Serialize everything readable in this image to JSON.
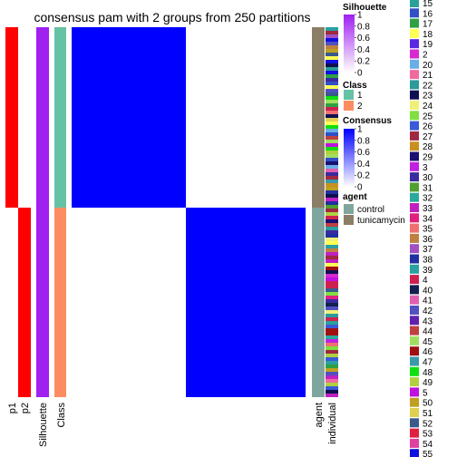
{
  "chart_data": {
    "type": "heatmap",
    "title": "consensus pam with 2 groups from 250 partitions",
    "group1_fraction": 0.488,
    "columns": {
      "p1": {
        "label": "p1",
        "top_color": "#FF0000",
        "bottom_color": "#FFFFFF"
      },
      "p2": {
        "label": "p2",
        "top_color": "#FFFFFF",
        "bottom_color": "#FF0000"
      },
      "silhouette": {
        "label": "Silhouette",
        "color": "#A020F0"
      },
      "class": {
        "label": "Class",
        "top_color": "#66C2A5",
        "bottom_color": "#FC8D62"
      },
      "agent": {
        "label": "agent",
        "top_color": "#8B7E66",
        "bottom_color": "#7FA69E"
      },
      "individual": {
        "label": "individual"
      }
    },
    "consensus_matrix": {
      "groups": [
        "1",
        "2"
      ],
      "values": [
        [
          1,
          0
        ],
        [
          0,
          1
        ]
      ],
      "high_color": "#0000FF",
      "low_color": "#FFFFFF"
    },
    "legends": {
      "silhouette": {
        "title": "Silhouette",
        "ticks": [
          "1",
          "0.8",
          "0.6",
          "0.4",
          "0.2",
          "0"
        ],
        "low_color": "#FFFFFF",
        "high_color": "#A020F0"
      },
      "class": {
        "title": "Class",
        "items": [
          {
            "label": "1",
            "color": "#66C2A5"
          },
          {
            "label": "2",
            "color": "#FC8D62"
          }
        ]
      },
      "consensus": {
        "title": "Consensus",
        "ticks": [
          "1",
          "0.8",
          "0.6",
          "0.4",
          "0.2",
          "0"
        ],
        "low_color": "#FFFFFF",
        "high_color": "#0000FF"
      },
      "agent": {
        "title": "agent",
        "items": [
          {
            "label": "control",
            "color": "#7FA69E"
          },
          {
            "label": "tunicamycin",
            "color": "#8B7E66"
          }
        ]
      },
      "individual": {
        "items": [
          {
            "label": "15",
            "color": "#2AA198"
          },
          {
            "label": "16",
            "color": "#3050C8"
          },
          {
            "label": "17",
            "color": "#2EA043"
          },
          {
            "label": "18",
            "color": "#FFFF55"
          },
          {
            "label": "19",
            "color": "#5A28E0"
          },
          {
            "label": "2",
            "color": "#D62AD0"
          },
          {
            "label": "20",
            "color": "#6AAEE8"
          },
          {
            "label": "21",
            "color": "#F06AA0"
          },
          {
            "label": "22",
            "color": "#2A9A9A"
          },
          {
            "label": "23",
            "color": "#101050"
          },
          {
            "label": "24",
            "color": "#F0F078"
          },
          {
            "label": "25",
            "color": "#80E040"
          },
          {
            "label": "26",
            "color": "#3A5AD8"
          },
          {
            "label": "27",
            "color": "#A02840"
          },
          {
            "label": "28",
            "color": "#C89020"
          },
          {
            "label": "29",
            "color": "#1A1070"
          },
          {
            "label": "3",
            "color": "#C020E0"
          },
          {
            "label": "30",
            "color": "#3A2AA0"
          },
          {
            "label": "31",
            "color": "#50A030"
          },
          {
            "label": "32",
            "color": "#2AAA9A"
          },
          {
            "label": "33",
            "color": "#C020C0"
          },
          {
            "label": "34",
            "color": "#E02080"
          },
          {
            "label": "35",
            "color": "#F07070"
          },
          {
            "label": "36",
            "color": "#C08040"
          },
          {
            "label": "37",
            "color": "#A050C0"
          },
          {
            "label": "38",
            "color": "#2030A0"
          },
          {
            "label": "39",
            "color": "#2AA0A0"
          },
          {
            "label": "4",
            "color": "#D02050"
          },
          {
            "label": "40",
            "color": "#102050"
          },
          {
            "label": "41",
            "color": "#E060B0"
          },
          {
            "label": "42",
            "color": "#5050C0"
          },
          {
            "label": "43",
            "color": "#6020B0"
          },
          {
            "label": "44",
            "color": "#C04040"
          },
          {
            "label": "45",
            "color": "#A0E060"
          },
          {
            "label": "46",
            "color": "#A01010"
          },
          {
            "label": "47",
            "color": "#3A9AAA"
          },
          {
            "label": "48",
            "color": "#10E010"
          },
          {
            "label": "49",
            "color": "#B0D040"
          },
          {
            "label": "5",
            "color": "#C010E0"
          },
          {
            "label": "50",
            "color": "#C0A020"
          },
          {
            "label": "51",
            "color": "#E0D050"
          },
          {
            "label": "52",
            "color": "#3A5A8A"
          },
          {
            "label": "53",
            "color": "#E02040"
          },
          {
            "label": "54",
            "color": "#E040A0"
          },
          {
            "label": "55",
            "color": "#1010E0"
          }
        ]
      }
    }
  }
}
